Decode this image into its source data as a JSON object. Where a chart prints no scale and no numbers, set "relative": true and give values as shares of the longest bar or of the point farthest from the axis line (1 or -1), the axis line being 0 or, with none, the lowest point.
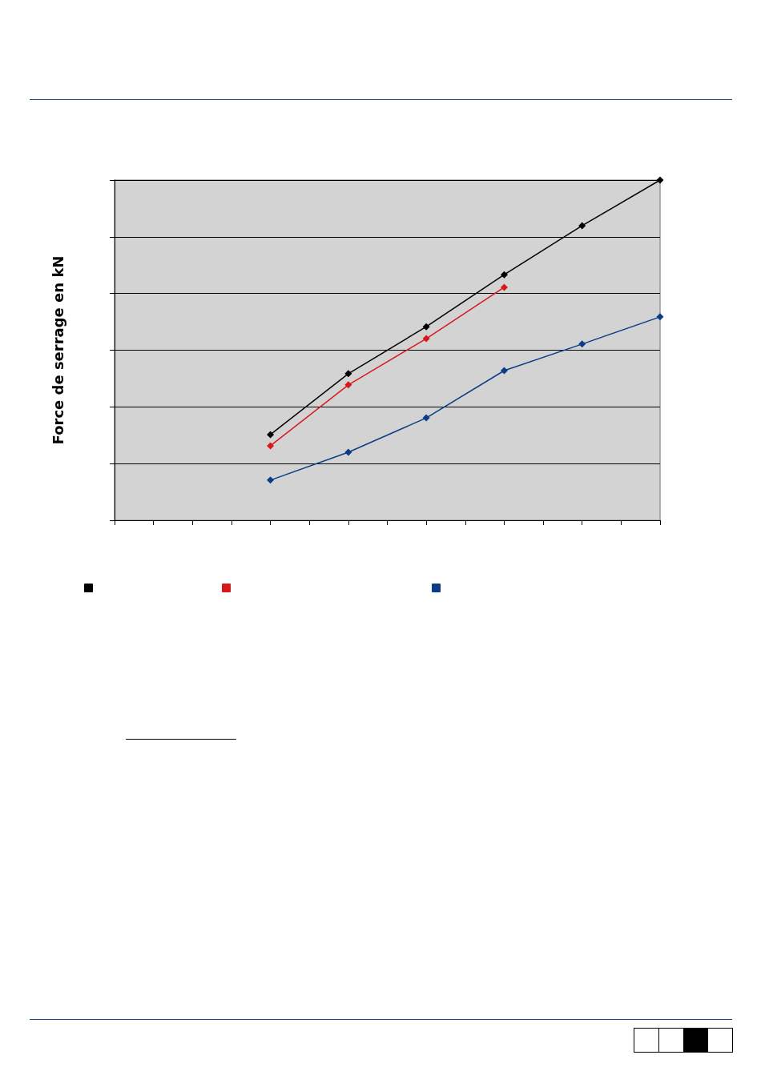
{
  "chart_data": {
    "type": "line",
    "ylabel": "Force de serrage en kN",
    "relative": true,
    "grid": "y",
    "marker": "diamond",
    "line_style": "solid",
    "categories": [
      null,
      null,
      null,
      null,
      null,
      null,
      null,
      null,
      null,
      null,
      null,
      null,
      null,
      null,
      null
    ],
    "series": [
      {
        "color": "#000000",
        "values": [
          null,
          null,
          null,
          null,
          0.252,
          null,
          0.431,
          null,
          0.569,
          null,
          0.722,
          null,
          0.866,
          null,
          1
        ]
      },
      {
        "color": "#d7191c",
        "values": [
          null,
          null,
          null,
          null,
          0.219,
          null,
          0.398,
          null,
          0.534,
          null,
          0.685,
          null,
          null,
          null,
          null
        ]
      },
      {
        "color": "#0a3d85",
        "values": [
          null,
          null,
          null,
          null,
          0.118,
          null,
          0.2,
          null,
          0.301,
          null,
          0.44,
          null,
          0.518,
          null,
          0.598
        ]
      }
    ]
  }
}
